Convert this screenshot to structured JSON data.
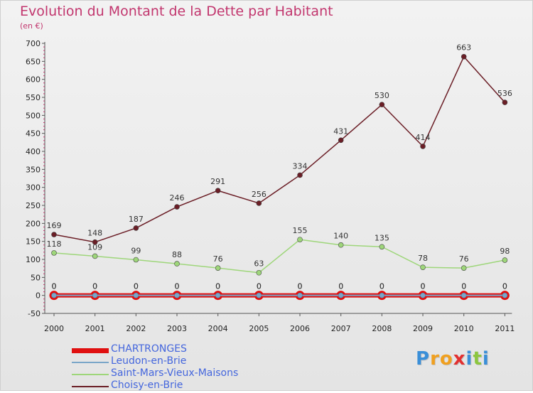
{
  "title": "Evolution du Montant de la Dette par Habitant",
  "subtitle": "(en €)",
  "logo": {
    "text": "Proxiti",
    "letters": [
      "P",
      "r",
      "o",
      "x",
      "i",
      "t",
      "i"
    ],
    "colors": [
      "#3a8fd8",
      "#f0a020",
      "#f0a020",
      "#e23030",
      "#3a8fd8",
      "#8cc63f",
      "#3a8fd8"
    ]
  },
  "chart_data": {
    "type": "line",
    "title": "Evolution du Montant de la Dette par Habitant",
    "subtitle": "(en €)",
    "xlabel": "",
    "ylabel": "",
    "x": [
      "2000",
      "2001",
      "2002",
      "2003",
      "2004",
      "2005",
      "2006",
      "2007",
      "2008",
      "2009",
      "2010",
      "2011"
    ],
    "ylim": [
      -50,
      700
    ],
    "yticks": [
      -50,
      0,
      50,
      100,
      150,
      200,
      250,
      300,
      350,
      400,
      450,
      500,
      550,
      600,
      650,
      700
    ],
    "grid": false,
    "legend_position": "bottom-left",
    "series": [
      {
        "name": "CHARTRONGES",
        "color": "#e01010",
        "values": [
          0,
          0,
          0,
          0,
          0,
          0,
          0,
          0,
          0,
          0,
          0,
          0
        ]
      },
      {
        "name": "Leudon-en-Brie",
        "color": "#7aa6c8",
        "values": [
          0,
          0,
          0,
          0,
          0,
          0,
          0,
          0,
          0,
          0,
          0,
          0
        ]
      },
      {
        "name": "Saint-Mars-Vieux-Maisons",
        "color": "#9ed67a",
        "values": [
          118,
          109,
          99,
          88,
          76,
          63,
          155,
          140,
          135,
          78,
          76,
          98
        ]
      },
      {
        "name": "Choisy-en-Brie",
        "color": "#6b1e26",
        "values": [
          169,
          148,
          187,
          246,
          291,
          256,
          334,
          431,
          530,
          414,
          663,
          536
        ]
      }
    ]
  }
}
